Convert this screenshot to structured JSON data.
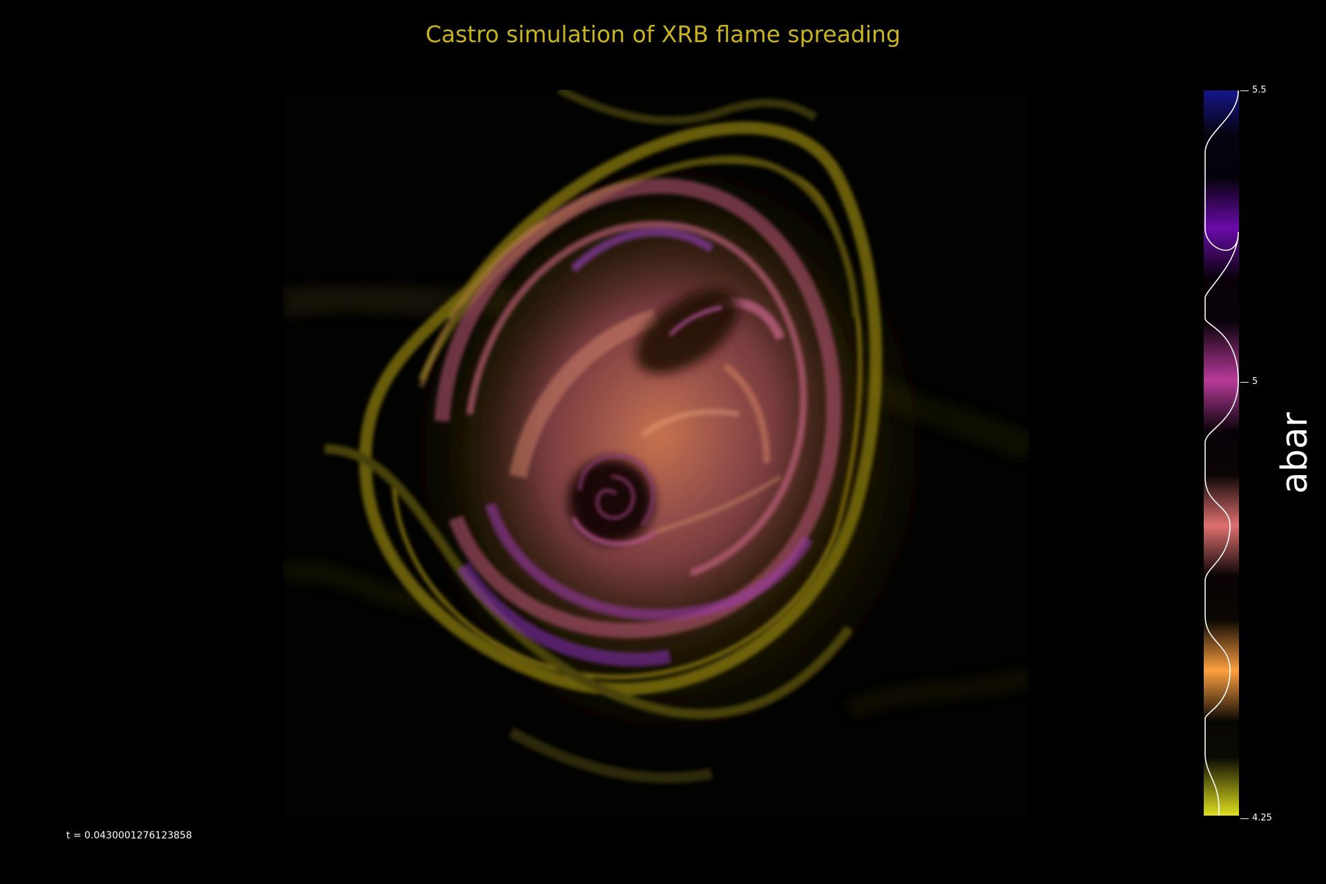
{
  "title": "Castro simulation of XRB flame spreading",
  "time_label": "t = 0.0430001276123858",
  "colorbar": {
    "label": "abar",
    "ticks": [
      "5.5",
      "5",
      "4.25"
    ],
    "range": [
      4.25,
      5.5
    ],
    "colors": [
      "#1a1a9e",
      "#6a0dad",
      "#c040a0",
      "#e07070",
      "#ffa040",
      "#e0e020"
    ]
  },
  "image": {
    "subject": "volume-rendering",
    "palette": [
      "#d0d020",
      "#ff9a40",
      "#e06a70",
      "#c040a0",
      "#7a20c0"
    ]
  }
}
